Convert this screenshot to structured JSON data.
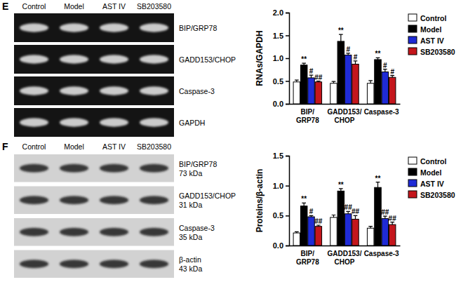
{
  "panels": [
    {
      "letter": "E",
      "blot": {
        "lanes": [
          "Control",
          "Model",
          "AST IV",
          "SB203580"
        ],
        "rows": [
          {
            "label": "BIP/GRP78"
          },
          {
            "label": "GADD153/CHOP"
          },
          {
            "label": "Caspase-3"
          },
          {
            "label": "GAPDH"
          }
        ]
      }
    },
    {
      "letter": "F",
      "blot": {
        "lanes": [
          "Control",
          "Model",
          "AST IV",
          "SB203580"
        ],
        "rows": [
          {
            "label": "BIP/GRP78",
            "size": "73 kDa"
          },
          {
            "label": "GADD153/CHOP",
            "size": "31 kDa"
          },
          {
            "label": "Caspase-3",
            "size": "35 kDa"
          },
          {
            "label": "β-actin",
            "size": "43 kDa"
          }
        ]
      }
    }
  ],
  "chart_data": [
    {
      "type": "bar",
      "ylabel": "RNAs/GAPDH",
      "categories": [
        "BIP/GRP78",
        "GADD153/CHOP",
        "Caspase-3"
      ],
      "ylim": [
        0,
        2.0
      ],
      "yticks": [
        {
          "value": 0,
          "label": "0.0"
        },
        {
          "value": 0.5,
          "label": "0.5"
        },
        {
          "value": 1.0,
          "label": "1.0"
        },
        {
          "value": 1.5,
          "label": "1.5"
        },
        {
          "value": 2.0,
          "label": "2.0"
        }
      ],
      "legend": "right",
      "series": [
        {
          "name": "Control",
          "color": "#ffffff",
          "values": [
            0.48,
            0.45,
            0.45
          ],
          "errors": [
            0.04,
            0.04,
            0.06
          ]
        },
        {
          "name": "Model",
          "color": "#000000",
          "values": [
            0.85,
            1.37,
            0.97
          ],
          "errors": [
            0.04,
            0.15,
            0.04
          ],
          "significance": [
            "**",
            "**",
            "**"
          ]
        },
        {
          "name": "AST IV",
          "color": "#1f2bd6",
          "values": [
            0.57,
            1.07,
            0.7
          ],
          "errors": [
            0.06,
            0.04,
            0.06
          ],
          "significance": [
            "#",
            "#",
            "#"
          ]
        },
        {
          "name": "SB203580",
          "color": "#c4161c",
          "values": [
            0.48,
            0.87,
            0.58
          ],
          "errors": [
            0.02,
            0.07,
            0.04
          ],
          "significance": [
            "##",
            "#",
            "#"
          ]
        }
      ]
    },
    {
      "type": "bar",
      "ylabel": "Proteins/β-actin",
      "categories": [
        "BIP/GRP78",
        "GADD153/CHOP",
        "Caspase-3"
      ],
      "ylim": [
        0,
        1.5
      ],
      "yticks": [
        {
          "value": 0,
          "label": "0.0"
        },
        {
          "value": 0.5,
          "label": "0.5"
        },
        {
          "value": 1.0,
          "label": "1.0"
        },
        {
          "value": 1.5,
          "label": "1.5"
        }
      ],
      "legend": "right",
      "series": [
        {
          "name": "Control",
          "color": "#ffffff",
          "values": [
            0.21,
            0.47,
            0.29
          ],
          "errors": [
            0.02,
            0.04,
            0.03
          ]
        },
        {
          "name": "Model",
          "color": "#000000",
          "values": [
            0.66,
            0.91,
            0.97
          ],
          "errors": [
            0.05,
            0.04,
            0.09
          ],
          "significance": [
            "**",
            "**",
            "**"
          ]
        },
        {
          "name": "AST IV",
          "color": "#1f2bd6",
          "values": [
            0.48,
            0.53,
            0.45
          ],
          "errors": [
            0.02,
            0.04,
            0.04
          ],
          "significance": [
            "#",
            "##",
            "##"
          ]
        },
        {
          "name": "SB203580",
          "color": "#c4161c",
          "values": [
            0.32,
            0.44,
            0.35
          ],
          "errors": [
            0.02,
            0.06,
            0.04
          ],
          "significance": [
            "##",
            "##",
            "##"
          ]
        }
      ]
    }
  ]
}
